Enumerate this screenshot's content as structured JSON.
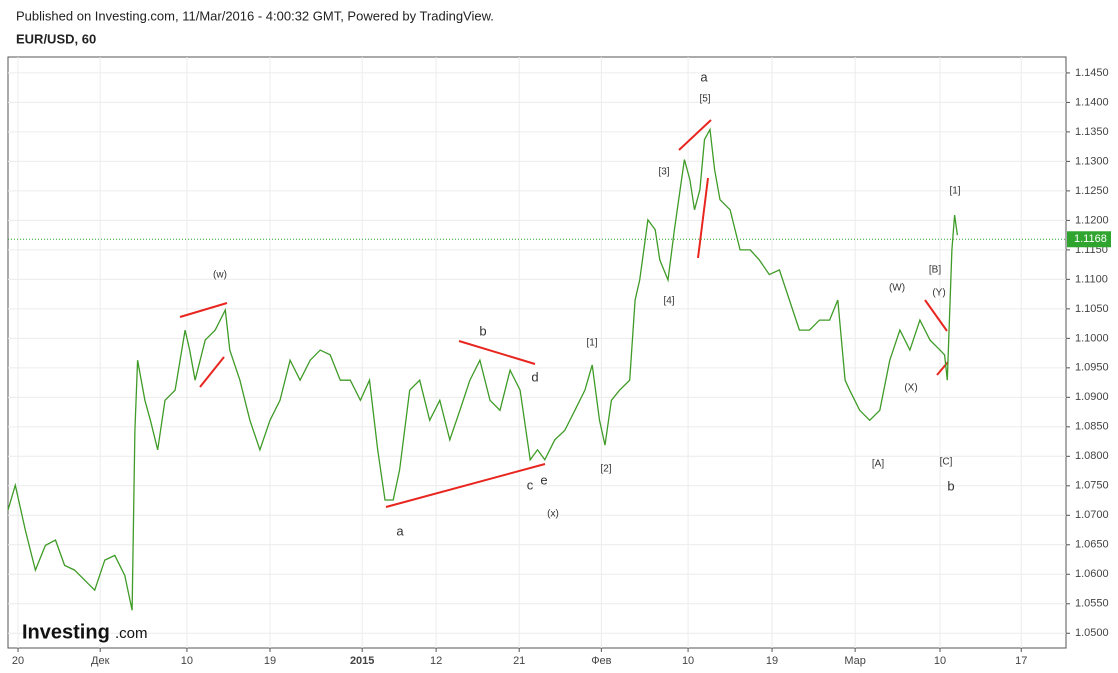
{
  "header": {
    "published": "Published on Investing.com, 11/Mar/2016 - 4:00:32 GMT, Powered by TradingView.",
    "symbol": "EUR/USD, 60"
  },
  "logo": {
    "brand": "Investing",
    "suffix": ".com"
  },
  "chart_data": {
    "type": "line",
    "x": [
      -1.1,
      -0.3,
      0.8,
      1.9,
      3.0,
      4.1,
      5.1,
      6.2,
      7.3,
      8.4,
      9.5,
      10.6,
      11.7,
      12.5,
      12.8,
      13.1,
      13.9,
      14.5,
      15.3,
      16.1,
      17.2,
      18.3,
      18.8,
      19.4,
      20.5,
      21.6,
      22.7,
      23.2,
      24.3,
      25.4,
      26.5,
      27.6,
      28.7,
      29.8,
      30.9,
      32.0,
      33.1,
      34.2,
      35.3,
      36.4,
      37.5,
      38.5,
      39.4,
      40.2,
      41.1,
      41.8,
      42.9,
      44.0,
      45.1,
      46.2,
      47.3,
      48.4,
      49.5,
      50.6,
      51.7,
      52.8,
      53.9,
      55.0,
      56.1,
      56.9,
      57.7,
      58.8,
      59.9,
      61.0,
      62.1,
      62.9,
      63.7,
      64.3,
      65.0,
      65.9,
      67.0,
      67.6,
      68.1,
      69.0,
      69.8,
      70.3,
      71.2,
      71.9,
      73.0,
      73.6,
      74.1,
      74.7,
      75.2,
      75.8,
      76.3,
      76.9,
      78.0,
      79.1,
      80.2,
      81.2,
      82.3,
      83.4,
      84.5,
      85.6,
      86.7,
      87.8,
      88.9,
      89.8,
      90.6,
      91.1,
      92.2,
      93.3,
      94.4,
      95.5,
      96.6,
      97.7,
      98.8,
      99.9,
      101.0,
      101.5,
      101.8,
      102.3,
      102.6,
      102.9
    ],
    "series": [
      {
        "name": "EUR/USD",
        "color": "#3f9b27",
        "values": [
          1.0709,
          1.0751,
          1.0675,
          1.0607,
          1.0649,
          1.0658,
          1.0615,
          1.0607,
          1.059,
          1.0573,
          1.0624,
          1.0632,
          1.0598,
          1.0539,
          1.0844,
          1.0963,
          1.0895,
          1.0861,
          1.0811,
          1.0895,
          1.0912,
          1.1014,
          1.098,
          1.0929,
          1.0997,
          1.1014,
          1.1048,
          1.098,
          1.0929,
          1.0861,
          1.0811,
          1.0861,
          1.0895,
          1.0963,
          1.0929,
          1.0963,
          1.098,
          1.0972,
          1.0929,
          1.0929,
          1.0895,
          1.0929,
          1.0811,
          1.0726,
          1.0726,
          1.0777,
          1.0912,
          1.0929,
          1.0861,
          1.0895,
          1.0828,
          1.0878,
          1.0929,
          1.0963,
          1.0895,
          1.0878,
          1.0946,
          1.0912,
          1.0794,
          1.0811,
          1.0794,
          1.0828,
          1.0844,
          1.0878,
          1.0912,
          1.0955,
          1.0861,
          1.0819,
          1.0895,
          1.0912,
          1.0929,
          1.1065,
          1.1099,
          1.1201,
          1.1184,
          1.1133,
          1.1099,
          1.1184,
          1.1303,
          1.1269,
          1.1218,
          1.1252,
          1.1337,
          1.1354,
          1.1286,
          1.1235,
          1.1218,
          1.115,
          1.115,
          1.1133,
          1.1108,
          1.1116,
          1.1065,
          1.1014,
          1.1014,
          1.1031,
          1.1031,
          1.1065,
          1.0929,
          1.0912,
          1.0878,
          1.0861,
          1.0878,
          1.0963,
          1.1014,
          1.098,
          1.1031,
          1.0997,
          1.098,
          1.0972,
          1.0929,
          1.115,
          1.1209,
          1.1175
        ]
      }
    ],
    "xlim": [
      -1.1,
      114.8
    ],
    "xticks": [
      {
        "value": 0,
        "label": "20"
      },
      {
        "value": 9,
        "label": "Дек"
      },
      {
        "value": 18.5,
        "label": "10"
      },
      {
        "value": 27.6,
        "label": "19"
      },
      {
        "value": 37.7,
        "label": "2015"
      },
      {
        "value": 45.8,
        "label": "12"
      },
      {
        "value": 54.9,
        "label": "21"
      },
      {
        "value": 63.9,
        "label": "Фев"
      },
      {
        "value": 73.4,
        "label": "10"
      },
      {
        "value": 82.6,
        "label": "19"
      },
      {
        "value": 91.7,
        "label": "Мар"
      },
      {
        "value": 101,
        "label": "10"
      },
      {
        "value": 109.9,
        "label": "17"
      }
    ],
    "ylim": [
      1.0475,
      1.1477
    ],
    "yticks": [
      {
        "value": 1.05,
        "label": "1.0500"
      },
      {
        "value": 1.055,
        "label": "1.0550"
      },
      {
        "value": 1.06,
        "label": "1.0600"
      },
      {
        "value": 1.065,
        "label": "1.0650"
      },
      {
        "value": 1.07,
        "label": "1.0700"
      },
      {
        "value": 1.075,
        "label": "1.0750"
      },
      {
        "value": 1.08,
        "label": "1.0800"
      },
      {
        "value": 1.085,
        "label": "1.0850"
      },
      {
        "value": 1.09,
        "label": "1.0900"
      },
      {
        "value": 1.095,
        "label": "1.0950"
      },
      {
        "value": 1.1,
        "label": "1.1000"
      },
      {
        "value": 1.105,
        "label": "1.1050"
      },
      {
        "value": 1.11,
        "label": "1.1100"
      },
      {
        "value": 1.115,
        "label": "1.1150"
      },
      {
        "value": 1.12,
        "label": "1.1200"
      },
      {
        "value": 1.125,
        "label": "1.1250"
      },
      {
        "value": 1.13,
        "label": "1.1300"
      },
      {
        "value": 1.135,
        "label": "1.1350"
      },
      {
        "value": 1.14,
        "label": "1.1400"
      },
      {
        "value": 1.145,
        "label": "1.1450"
      }
    ],
    "last_price": {
      "value": 1.1168,
      "label": "1.1168",
      "color": "#2fa52f"
    },
    "grid": true,
    "annotations": [
      "(w)",
      "b",
      "d",
      "a",
      "c",
      "e",
      "(x)",
      "[1]",
      "[2]",
      "[3]",
      "[4]",
      "[5]",
      "a",
      "[A]",
      "(W)",
      "(X)",
      "(Y)",
      "[B]",
      "[1]",
      "[C]",
      "b"
    ]
  }
}
